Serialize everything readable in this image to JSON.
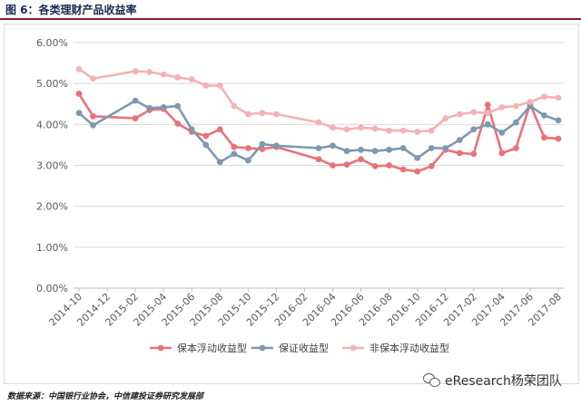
{
  "figure": {
    "title": "图 6：各类理财产品收益率",
    "source": "数据来源：中国银行业协会，中信建投证券研究发展部",
    "brand": "eResearch杨荣团队",
    "brand_icon": "wechat-icon"
  },
  "chart_data": {
    "type": "line",
    "title": "",
    "xlabel": "",
    "ylabel": "",
    "ylim": [
      0,
      6
    ],
    "y_ticks": [
      "0.00%",
      "1.00%",
      "2.00%",
      "3.00%",
      "4.00%",
      "5.00%",
      "6.00%"
    ],
    "x_ticks": [
      "2014-10",
      "2014-12",
      "2015-02",
      "2015-04",
      "2015-06",
      "2015-08",
      "2015-10",
      "2015-12",
      "2016-02",
      "2016-04",
      "2016-06",
      "2016-08",
      "2016-10",
      "2016-12",
      "2017-02",
      "2017-04",
      "2017-06",
      "2017-08"
    ],
    "x_range": [
      0,
      34
    ],
    "grid": "horizontal",
    "legend_position": "bottom",
    "series": [
      {
        "name": "保本浮动收益型",
        "color": "#e8727a",
        "points": [
          [
            0,
            4.75
          ],
          [
            1,
            4.2
          ],
          [
            4,
            4.15
          ],
          [
            5,
            4.35
          ],
          [
            6,
            4.38
          ],
          [
            7,
            4.02
          ],
          [
            8,
            3.82
          ],
          [
            9,
            3.72
          ],
          [
            10,
            3.88
          ],
          [
            11,
            3.45
          ],
          [
            12,
            3.42
          ],
          [
            13,
            3.4
          ],
          [
            14,
            3.45
          ],
          [
            17,
            3.15
          ],
          [
            18,
            3.0
          ],
          [
            19,
            3.02
          ],
          [
            20,
            3.15
          ],
          [
            21,
            2.98
          ],
          [
            22,
            3.0
          ],
          [
            23,
            2.9
          ],
          [
            24,
            2.85
          ],
          [
            25,
            2.98
          ],
          [
            26,
            3.38
          ],
          [
            27,
            3.3
          ],
          [
            28,
            3.28
          ],
          [
            29,
            4.48
          ],
          [
            30,
            3.3
          ],
          [
            31,
            3.42
          ],
          [
            32,
            4.5
          ],
          [
            33,
            3.68
          ],
          [
            34,
            3.65
          ]
        ]
      },
      {
        "name": "保证收益型",
        "color": "#7f98b0",
        "points": [
          [
            0,
            4.28
          ],
          [
            1,
            3.98
          ],
          [
            4,
            4.58
          ],
          [
            5,
            4.4
          ],
          [
            6,
            4.42
          ],
          [
            7,
            4.45
          ],
          [
            8,
            3.88
          ],
          [
            9,
            3.5
          ],
          [
            10,
            3.08
          ],
          [
            11,
            3.28
          ],
          [
            12,
            3.12
          ],
          [
            13,
            3.52
          ],
          [
            14,
            3.48
          ],
          [
            17,
            3.42
          ],
          [
            18,
            3.48
          ],
          [
            19,
            3.35
          ],
          [
            20,
            3.38
          ],
          [
            21,
            3.35
          ],
          [
            22,
            3.38
          ],
          [
            23,
            3.42
          ],
          [
            24,
            3.18
          ],
          [
            25,
            3.42
          ],
          [
            26,
            3.42
          ],
          [
            27,
            3.62
          ],
          [
            28,
            3.88
          ],
          [
            29,
            4.0
          ],
          [
            30,
            3.8
          ],
          [
            31,
            4.05
          ],
          [
            32,
            4.45
          ],
          [
            33,
            4.22
          ],
          [
            34,
            4.1
          ]
        ]
      },
      {
        "name": "非保本浮动收益型",
        "color": "#f3b3b3",
        "points": [
          [
            0,
            5.35
          ],
          [
            1,
            5.12
          ],
          [
            4,
            5.3
          ],
          [
            5,
            5.28
          ],
          [
            6,
            5.22
          ],
          [
            7,
            5.15
          ],
          [
            8,
            5.1
          ],
          [
            9,
            4.95
          ],
          [
            10,
            4.95
          ],
          [
            11,
            4.45
          ],
          [
            12,
            4.25
          ],
          [
            13,
            4.28
          ],
          [
            14,
            4.25
          ],
          [
            17,
            4.05
          ],
          [
            18,
            3.92
          ],
          [
            19,
            3.88
          ],
          [
            20,
            3.92
          ],
          [
            21,
            3.9
          ],
          [
            22,
            3.85
          ],
          [
            23,
            3.85
          ],
          [
            24,
            3.82
          ],
          [
            25,
            3.85
          ],
          [
            26,
            4.15
          ],
          [
            27,
            4.25
          ],
          [
            28,
            4.3
          ],
          [
            29,
            4.28
          ],
          [
            30,
            4.42
          ],
          [
            31,
            4.45
          ],
          [
            32,
            4.55
          ],
          [
            33,
            4.68
          ],
          [
            34,
            4.65
          ]
        ]
      }
    ]
  }
}
